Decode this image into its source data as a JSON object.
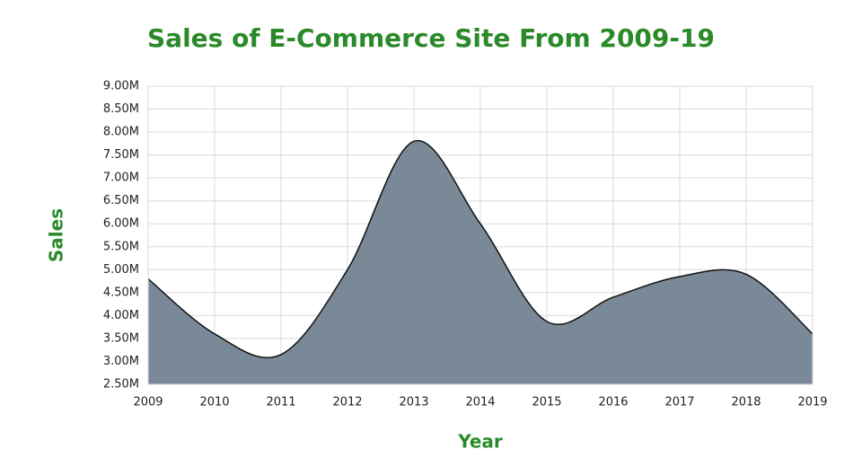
{
  "chart_data": {
    "type": "area",
    "title": "Sales of E-Commerce Site From 2009-19",
    "x_label": "Year",
    "y_label": "Sales",
    "x": [
      2009,
      2010,
      2011,
      2012,
      2013,
      2014,
      2015,
      2016,
      2017,
      2018,
      2019
    ],
    "values": [
      4800000,
      3600000,
      3150000,
      5000000,
      7800000,
      6000000,
      3870000,
      4400000,
      4850000,
      4900000,
      3600000
    ],
    "color": "#7a8998",
    "xlim": [
      2009,
      2019
    ],
    "xticks": [
      2009,
      2010,
      2011,
      2012,
      2013,
      2014,
      2015,
      2016,
      2017,
      2018,
      2019
    ],
    "ylim": [
      2500000,
      9000000
    ],
    "yticks": [
      {
        "value": 2500000,
        "label": "2.50M"
      },
      {
        "value": 3000000,
        "label": "3.00M"
      },
      {
        "value": 3500000,
        "label": "3.50M"
      },
      {
        "value": 4000000,
        "label": "4.00M"
      },
      {
        "value": 4500000,
        "label": "4.50M"
      },
      {
        "value": 5000000,
        "label": "5.00M"
      },
      {
        "value": 5500000,
        "label": "5.50M"
      },
      {
        "value": 6000000,
        "label": "6.00M"
      },
      {
        "value": 6500000,
        "label": "6.50M"
      },
      {
        "value": 7000000,
        "label": "7.00M"
      },
      {
        "value": 7500000,
        "label": "7.50M"
      },
      {
        "value": 8000000,
        "label": "8.00M"
      },
      {
        "value": 8500000,
        "label": "8.50M"
      },
      {
        "value": 9000000,
        "label": "9.00M"
      }
    ],
    "grid": true
  }
}
